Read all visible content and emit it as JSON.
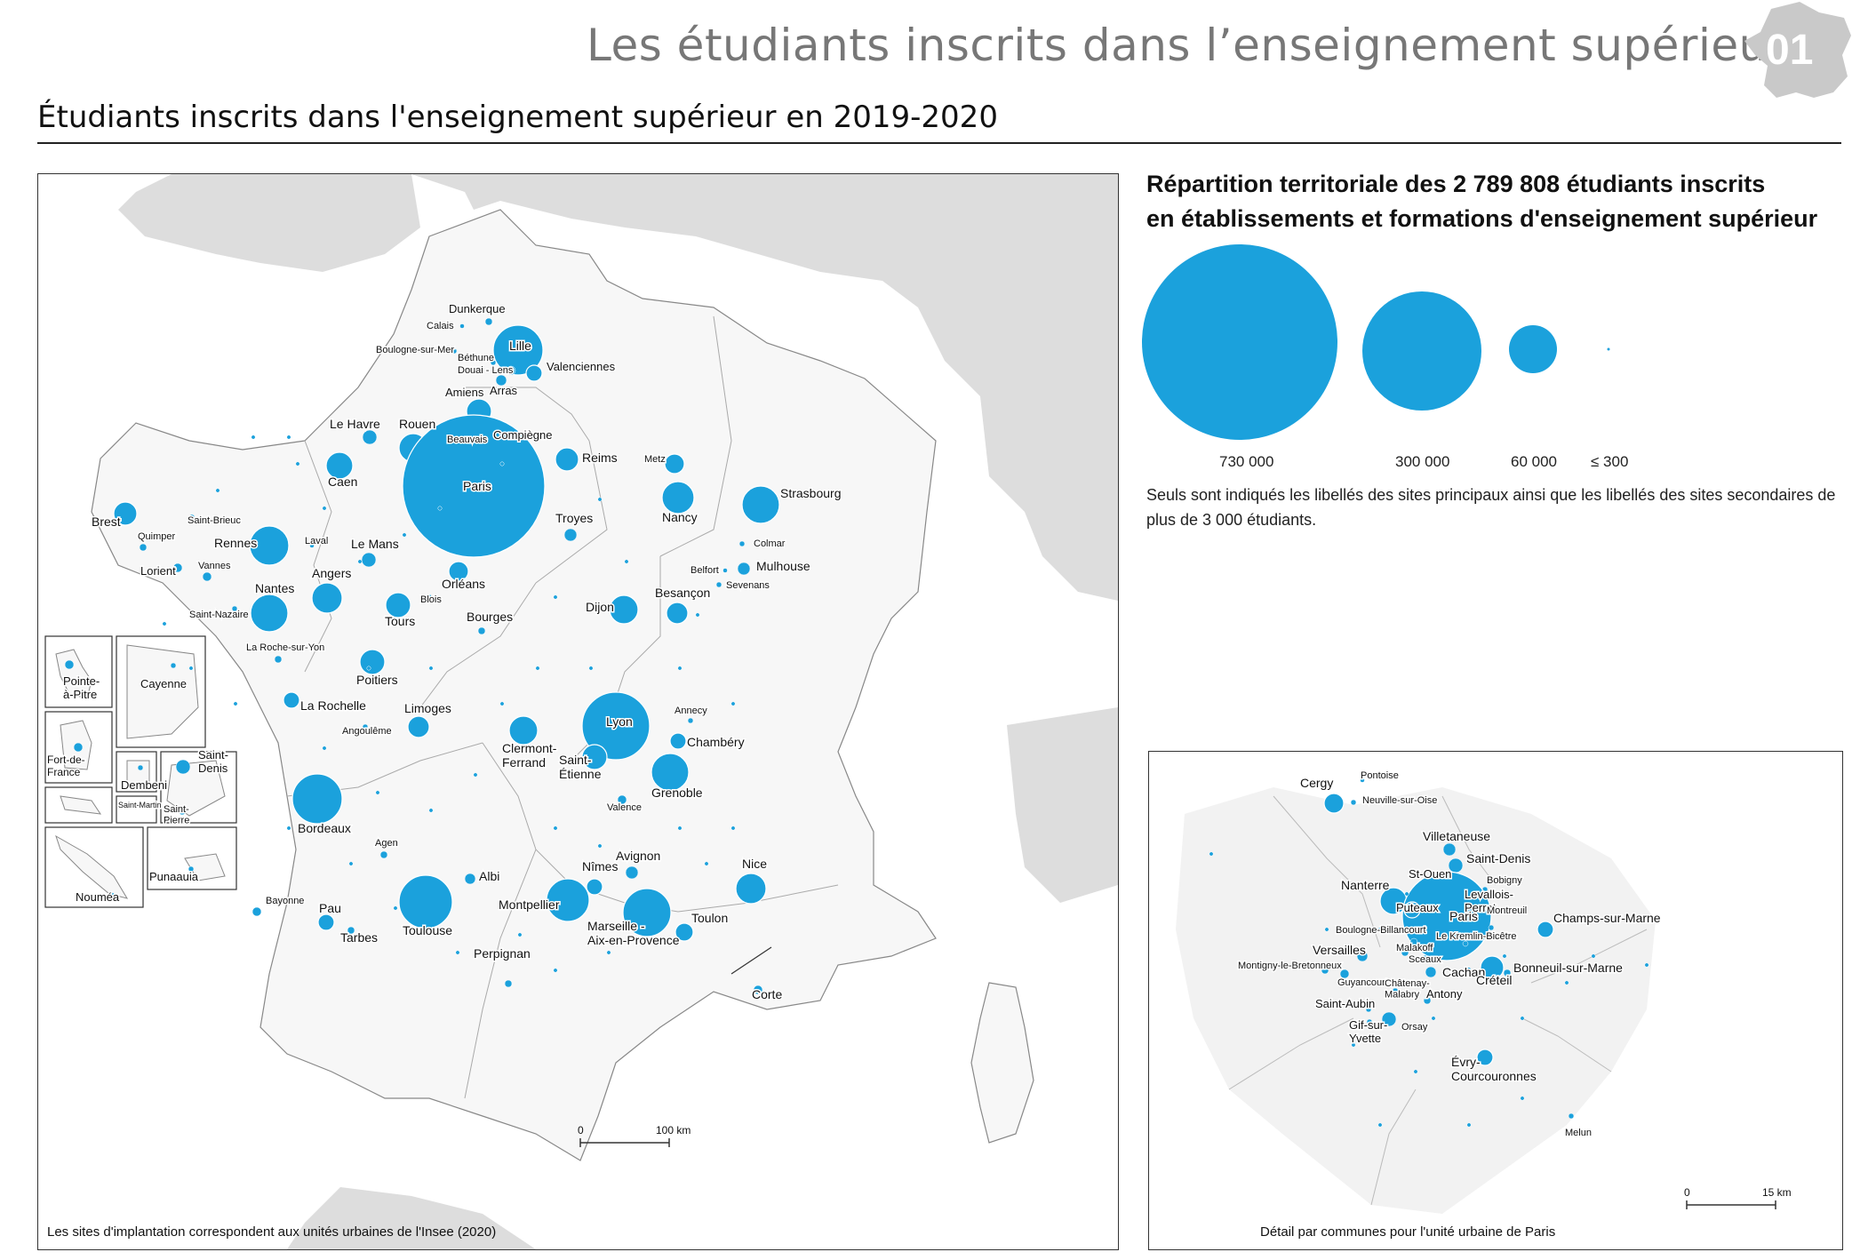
{
  "header": {
    "title": "Les étudiants inscrits dans l’enseignement supérieur",
    "badge_number": "01",
    "subtitle": "Étudiants inscrits dans l'enseignement supérieur en 2019-2020"
  },
  "legend": {
    "title_line1": "Répartition territoriale des 2 789 808 étudiants inscrits",
    "title_line2": "en établissements et formations d'enseignement supérieur",
    "sizes": [
      "730 000",
      "300 000",
      "60 000",
      "≤ 300"
    ],
    "note": "Seuls sont indiqués les libellés des sites principaux ainsi que les libellés des sites secondaires de plus de 3 000 étudiants."
  },
  "main_map": {
    "footer": "Les sites d'implantation correspondent aux unités urbaines de l'Insee (2020)",
    "scale_start": "0",
    "scale_end": "100 km",
    "overseas": [
      "Pointe-à-Pitre",
      "Cayenne",
      "Fort-de-France",
      "Dembeni",
      "Saint-Martin",
      "Saint-Denis",
      "Saint-Pierre",
      "Nouméa",
      "Punaauia"
    ]
  },
  "inset_map": {
    "footer": "Détail par communes pour l'unité urbaine de Paris",
    "scale_start": "0",
    "scale_end": "15 km"
  },
  "colors": {
    "bubble": "#1ba1dc",
    "land": "#f7f7f7",
    "neighbor": "#dddddd",
    "border": "#999999"
  },
  "cities": [
    "Dunkerque",
    "Calais",
    "Boulogne-sur-Mer",
    "Lille",
    "Béthune",
    "Douai - Lens",
    "Valenciennes",
    "Arras",
    "Amiens",
    "Le Havre",
    "Rouen",
    "Beauvais",
    "Compiègne",
    "Reims",
    "Metz",
    "Caen",
    "Paris",
    "Strasbourg",
    "Nancy",
    "Brest",
    "Saint-Brieuc",
    "Quimper",
    "Rennes",
    "Laval",
    "Le Mans",
    "Troyes",
    "Colmar",
    "Lorient",
    "Vannes",
    "Angers",
    "Orléans",
    "Belfort",
    "Mulhouse",
    "Sevenans",
    "Besançon",
    "Nantes",
    "Blois",
    "Tours",
    "Dijon",
    "Saint-Nazaire",
    "Bourges",
    "La Roche-sur-Yon",
    "Poitiers",
    "La Rochelle",
    "Limoges",
    "Annecy",
    "Angoulême",
    "Clermont-Ferrand",
    "Lyon",
    "Chambéry",
    "Saint-Étienne",
    "Grenoble",
    "Valence",
    "Bordeaux",
    "Agen",
    "Avignon",
    "Nîmes",
    "Albi",
    "Nice",
    "Bayonne",
    "Pau",
    "Toulouse",
    "Montpellier",
    "Marseille - Aix-en-Provence",
    "Toulon",
    "Tarbes",
    "Perpignan",
    "Corte"
  ],
  "inset_cities": [
    "Cergy",
    "Pontoise",
    "Neuville-sur-Oise",
    "Villetaneuse",
    "Saint-Denis",
    "St-Ouen",
    "Bobigny",
    "Nanterre",
    "Levallois-Perret",
    "Paris",
    "Puteaux",
    "Montreuil",
    "Champs-sur-Marne",
    "Boulogne-Billancourt",
    "Le Kremlin-Bicêtre",
    "Malakoff",
    "Versailles",
    "Sceaux",
    "Montigny-le-Bretonneux",
    "Guyancourt",
    "Cachan",
    "Créteil",
    "Bonneuil-sur-Marne",
    "Châtenay-Malabry",
    "Antony",
    "Saint-Aubin",
    "Gif-sur-Yvette",
    "Orsay",
    "Évry-Courcouronnes",
    "Melun"
  ]
}
